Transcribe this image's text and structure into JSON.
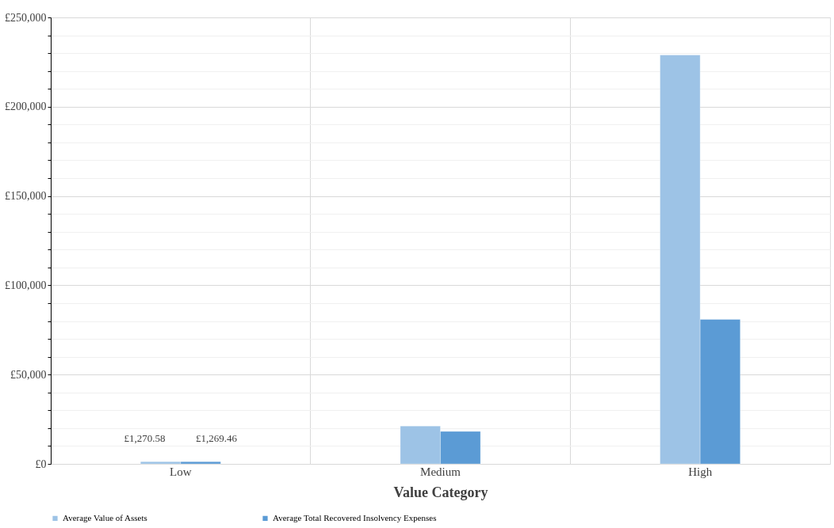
{
  "chart_data": {
    "type": "bar",
    "xlabel": "Value Category",
    "categories": [
      "Low",
      "Medium",
      "High"
    ],
    "series": [
      {
        "name": "Average Value of Assets",
        "color": "#9dc3e6",
        "values": [
          1270.58,
          21200,
          229000
        ],
        "value_labels": [
          "£1,270.58",
          null,
          null
        ]
      },
      {
        "name": "Average Total Recovered Insolvency Expenses",
        "color": "#5b9bd5",
        "values": [
          1269.46,
          18200,
          80900
        ],
        "value_labels": [
          "£1,269.46",
          null,
          null
        ]
      }
    ],
    "ylim": [
      0,
      250000
    ],
    "yticks": [
      {
        "value": 0,
        "label": "£0"
      },
      {
        "value": 10000,
        "label": null
      },
      {
        "value": 20000,
        "label": null
      },
      {
        "value": 30000,
        "label": null
      },
      {
        "value": 40000,
        "label": null
      },
      {
        "value": 50000,
        "label": "£50,000"
      },
      {
        "value": 60000,
        "label": null
      },
      {
        "value": 70000,
        "label": null
      },
      {
        "value": 80000,
        "label": null
      },
      {
        "value": 90000,
        "label": null
      },
      {
        "value": 100000,
        "label": "£100,000"
      },
      {
        "value": 110000,
        "label": null
      },
      {
        "value": 120000,
        "label": null
      },
      {
        "value": 130000,
        "label": null
      },
      {
        "value": 140000,
        "label": null
      },
      {
        "value": 150000,
        "label": "£150,000"
      },
      {
        "value": 160000,
        "label": null
      },
      {
        "value": 170000,
        "label": null
      },
      {
        "value": 180000,
        "label": null
      },
      {
        "value": 190000,
        "label": null
      },
      {
        "value": 200000,
        "label": "£200,000"
      },
      {
        "value": 210000,
        "label": null
      },
      {
        "value": 220000,
        "label": null
      },
      {
        "value": 230000,
        "label": null
      },
      {
        "value": 240000,
        "label": null
      },
      {
        "value": 250000,
        "label": "£250,000"
      }
    ],
    "grid": true,
    "legend": "bottom"
  }
}
